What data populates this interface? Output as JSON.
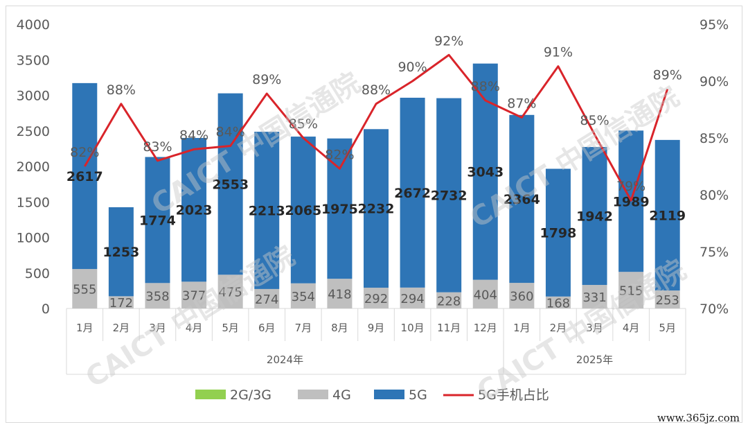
{
  "chart_data": {
    "type": "bar",
    "stacked": true,
    "categories": [
      "1月",
      "2月",
      "3月",
      "4月",
      "5月",
      "6月",
      "7月",
      "8月",
      "9月",
      "10月",
      "11月",
      "12月",
      "1月",
      "2月",
      "3月",
      "4月",
      "5月"
    ],
    "groups": [
      {
        "label": "2024年",
        "start": 0,
        "end": 11
      },
      {
        "label": "2025年",
        "start": 12,
        "end": 16
      }
    ],
    "series": [
      {
        "name": "2G/3G",
        "color": "#92d050",
        "values": [
          0,
          0,
          0,
          0,
          0,
          0,
          0,
          0,
          0,
          0,
          0,
          0,
          0,
          0,
          0,
          0,
          0
        ]
      },
      {
        "name": "4G",
        "color": "#bfbfbf",
        "values": [
          555,
          172,
          358,
          377,
          475,
          274,
          354,
          418,
          292,
          294,
          228,
          404,
          360,
          168,
          331,
          515,
          253
        ]
      },
      {
        "name": "5G",
        "color": "#2e75b6",
        "values": [
          2617,
          1253,
          1774,
          2023,
          2553,
          2213,
          2065,
          1975,
          2232,
          2672,
          2732,
          3043,
          2364,
          1798,
          1942,
          1989,
          2119
        ]
      }
    ],
    "line_series": {
      "name": "5G手机占比",
      "color": "#d9242a",
      "values": [
        82.5,
        88,
        83,
        84,
        84.3,
        88.9,
        85,
        82.3,
        88,
        90,
        92.3,
        88.3,
        86.8,
        91.3,
        85.3,
        79.5,
        89.3
      ],
      "labels": [
        "82%",
        "88%",
        "83%",
        "84%",
        "84%",
        "89%",
        "85%",
        "82%",
        "88%",
        "90%",
        "92%",
        "88%",
        "87%",
        "91%",
        "85%",
        "79%",
        "89%"
      ]
    },
    "y_left": {
      "min": 0,
      "max": 4000,
      "ticks": [
        "0",
        "500",
        "1000",
        "1500",
        "2000",
        "2500",
        "3000",
        "3500",
        "4000"
      ]
    },
    "y_right": {
      "min": 70,
      "max": 95,
      "ticks": [
        "70%",
        "75%",
        "80%",
        "85%",
        "90%",
        "95%"
      ]
    },
    "legend": [
      "2G/3G",
      "4G",
      "5G",
      "5G手机占比"
    ],
    "legend_position": "bottom",
    "grid": false
  },
  "watermark": "CAICT 中国信通院",
  "site_label": "www.365jz.com"
}
